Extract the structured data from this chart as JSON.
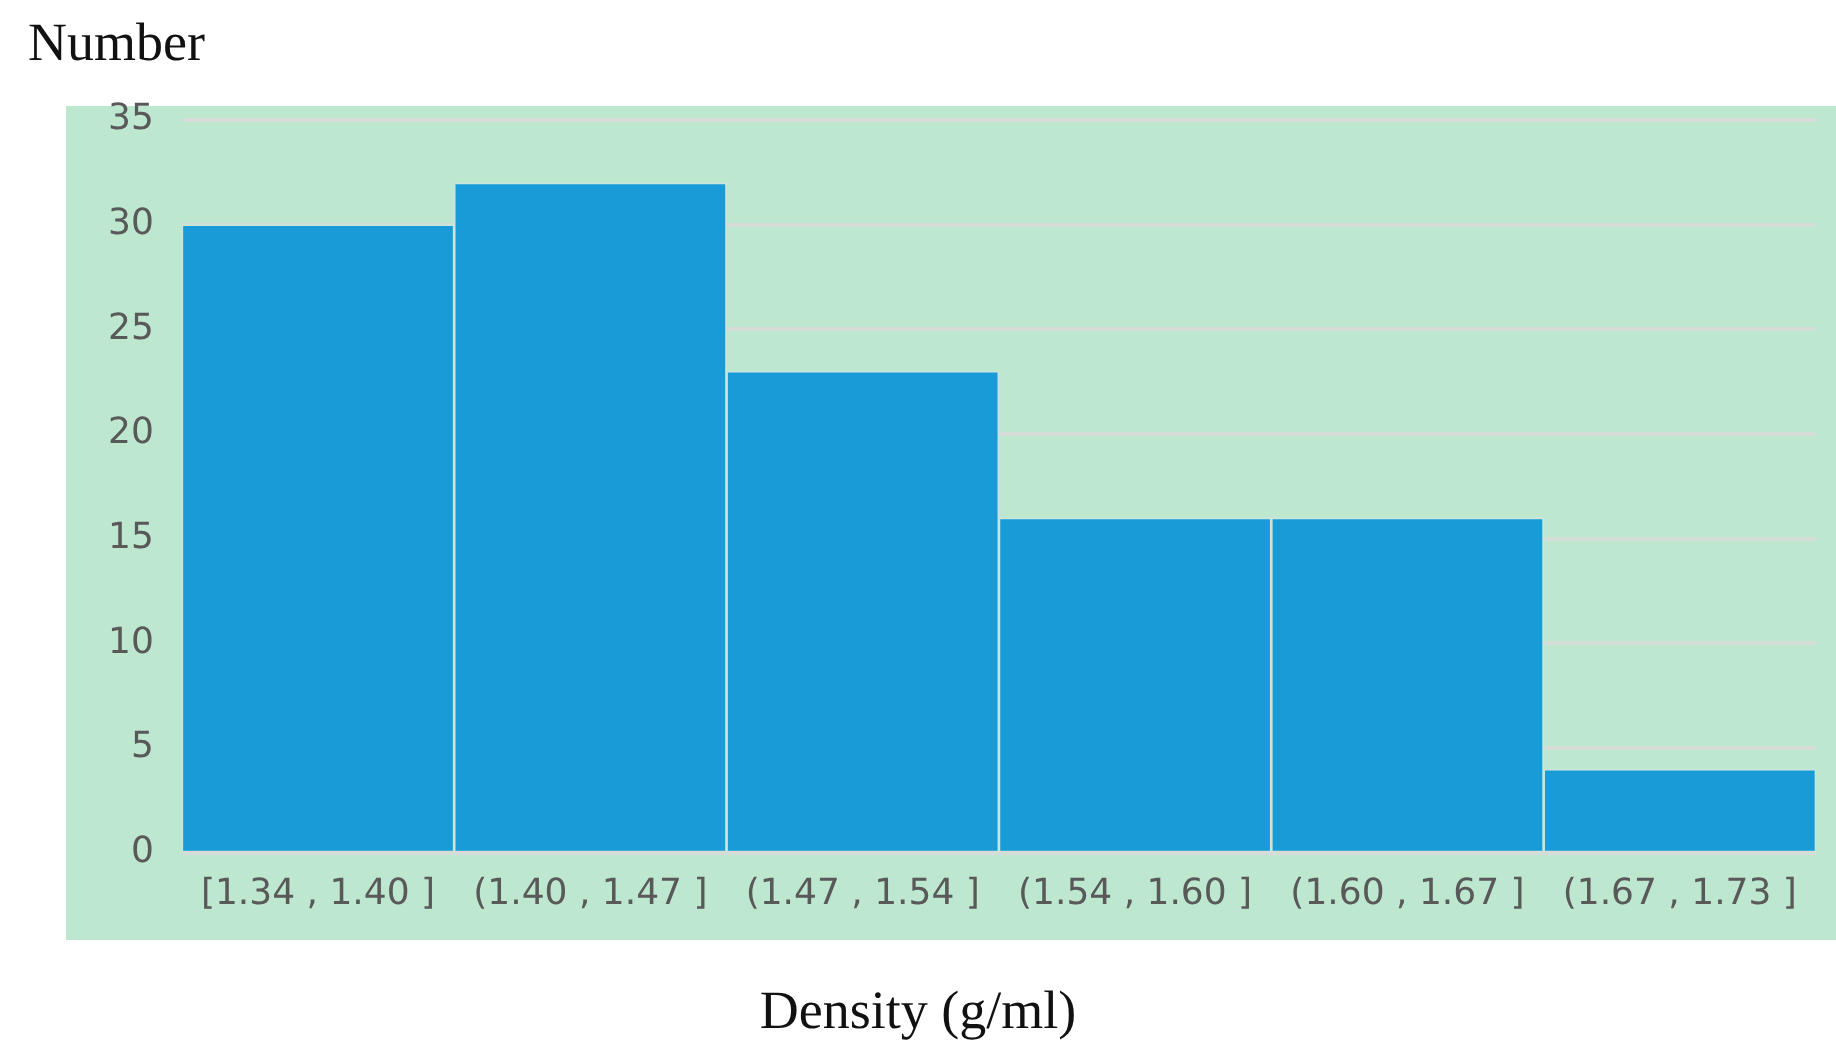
{
  "chart_data": {
    "type": "bar",
    "xlabel": "Density (g/ml)",
    "ylabel": "Number",
    "categories": [
      "[1.34 , 1.40 ]",
      "(1.40 , 1.47 ]",
      "(1.47 , 1.54 ]",
      "(1.54 , 1.60 ]",
      "(1.60 , 1.67 ]",
      "(1.67 , 1.73 ]"
    ],
    "values": [
      30,
      32,
      23,
      16,
      16,
      4
    ],
    "color": "#189bd6",
    "ylim": [
      0,
      35
    ],
    "yticks": [
      0,
      5,
      10,
      15,
      20,
      25,
      30,
      35
    ],
    "grid": "y"
  }
}
